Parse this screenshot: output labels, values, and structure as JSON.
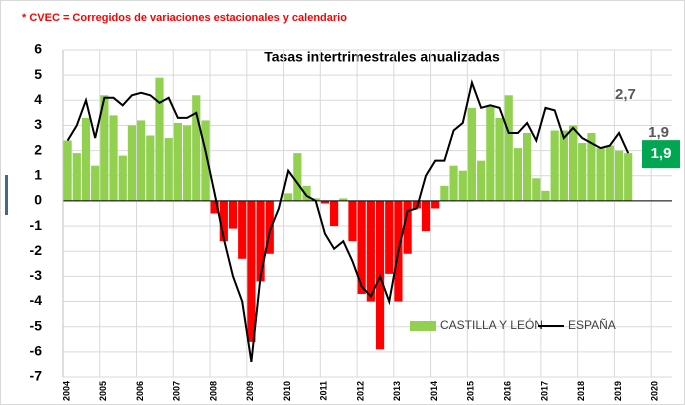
{
  "chart_data": {
    "type": "bar_line",
    "note": "* CVEC = Corregidos de variaciones estacionales y calendario",
    "title": "Tasas intertrimestrales anualizadas",
    "categories": [
      "2004",
      null,
      null,
      null,
      "2005",
      null,
      null,
      null,
      "2006",
      null,
      null,
      null,
      "2007",
      null,
      null,
      null,
      "2008",
      null,
      null,
      null,
      "2009",
      null,
      null,
      null,
      "2010",
      null,
      null,
      null,
      "2011",
      null,
      null,
      null,
      "2012",
      null,
      null,
      null,
      "2013",
      null,
      null,
      null,
      "2014",
      null,
      null,
      null,
      "2015",
      null,
      null,
      null,
      "2016",
      null,
      null,
      null,
      "2017",
      null,
      null,
      null,
      "2018",
      null,
      null,
      null,
      "2019",
      null,
      null,
      null,
      "2020"
    ],
    "series": [
      {
        "name": "CASTILLA Y LEÓN",
        "kind": "bar",
        "color": "#92d050",
        "negative_color": "#ff0000",
        "values": [
          2.4,
          1.9,
          3.3,
          1.4,
          4.2,
          3.4,
          1.8,
          3.0,
          3.2,
          2.6,
          4.9,
          2.5,
          3.1,
          3.0,
          4.2,
          3.2,
          -0.5,
          -1.6,
          -1.1,
          -2.3,
          -5.6,
          -3.2,
          -2.1,
          0.0,
          0.3,
          1.9,
          0.6,
          0.1,
          -0.1,
          -1.0,
          0.1,
          -1.6,
          -3.7,
          -4.0,
          -5.9,
          -2.9,
          -4.0,
          -2.1,
          -0.3,
          -1.2,
          -0.3,
          0.6,
          1.4,
          1.2,
          3.7,
          1.6,
          3.8,
          3.3,
          4.2,
          2.1,
          2.7,
          0.9,
          0.4,
          2.8,
          2.8,
          3.0,
          2.3,
          2.7,
          2.1,
          2.2,
          2.0,
          1.9,
          null,
          null,
          null
        ],
        "value_labels": [
          null,
          null,
          null,
          null,
          null,
          null,
          null,
          null,
          null,
          null,
          null,
          null,
          null,
          null,
          null,
          null,
          null,
          null,
          null,
          null,
          null,
          null,
          null,
          null,
          null,
          null,
          null,
          null,
          null,
          null,
          null,
          null,
          null,
          null,
          null,
          null,
          null,
          null,
          null,
          null,
          null,
          null,
          null,
          null,
          null,
          null,
          null,
          null,
          null,
          null,
          null,
          null,
          null,
          null,
          null,
          null,
          null,
          null,
          null,
          null,
          null,
          "1,9",
          null,
          null,
          null
        ]
      },
      {
        "name": "ESPAÑA",
        "kind": "line",
        "color": "#000000",
        "values": [
          2.4,
          3.0,
          4.0,
          2.5,
          4.1,
          4.1,
          3.8,
          4.2,
          4.3,
          4.2,
          3.9,
          4.1,
          3.3,
          3.3,
          3.5,
          2.0,
          0.3,
          -1.5,
          -3.0,
          -4.0,
          -6.4,
          -3.0,
          -1.2,
          -0.3,
          1.2,
          0.7,
          0.2,
          0.0,
          -1.3,
          -1.9,
          -1.6,
          -2.4,
          -3.4,
          -3.8,
          -3.0,
          -4.0,
          -2.0,
          -0.4,
          -0.3,
          1.0,
          1.6,
          1.6,
          2.8,
          3.1,
          4.7,
          3.7,
          3.8,
          3.7,
          2.7,
          2.7,
          3.1,
          2.4,
          3.7,
          3.6,
          2.5,
          2.9,
          2.5,
          2.3,
          2.1,
          2.2,
          2.7,
          1.9,
          null,
          null,
          null
        ],
        "value_labels": [
          null,
          null,
          null,
          null,
          null,
          null,
          null,
          null,
          null,
          null,
          null,
          null,
          null,
          null,
          null,
          null,
          null,
          null,
          null,
          null,
          null,
          null,
          null,
          null,
          null,
          null,
          null,
          null,
          null,
          null,
          null,
          null,
          null,
          null,
          null,
          null,
          null,
          null,
          null,
          null,
          null,
          null,
          null,
          null,
          null,
          null,
          null,
          null,
          null,
          null,
          null,
          null,
          null,
          null,
          null,
          null,
          null,
          null,
          null,
          null,
          "2,7",
          "1,9",
          null,
          null,
          null
        ]
      }
    ],
    "ylim": [
      -7,
      6
    ],
    "yticks": [
      -7,
      -6,
      -5,
      -4,
      -3,
      -2,
      -1,
      0,
      1,
      2,
      3,
      4,
      5,
      6
    ],
    "grid": true,
    "legend": "bottom-right"
  }
}
